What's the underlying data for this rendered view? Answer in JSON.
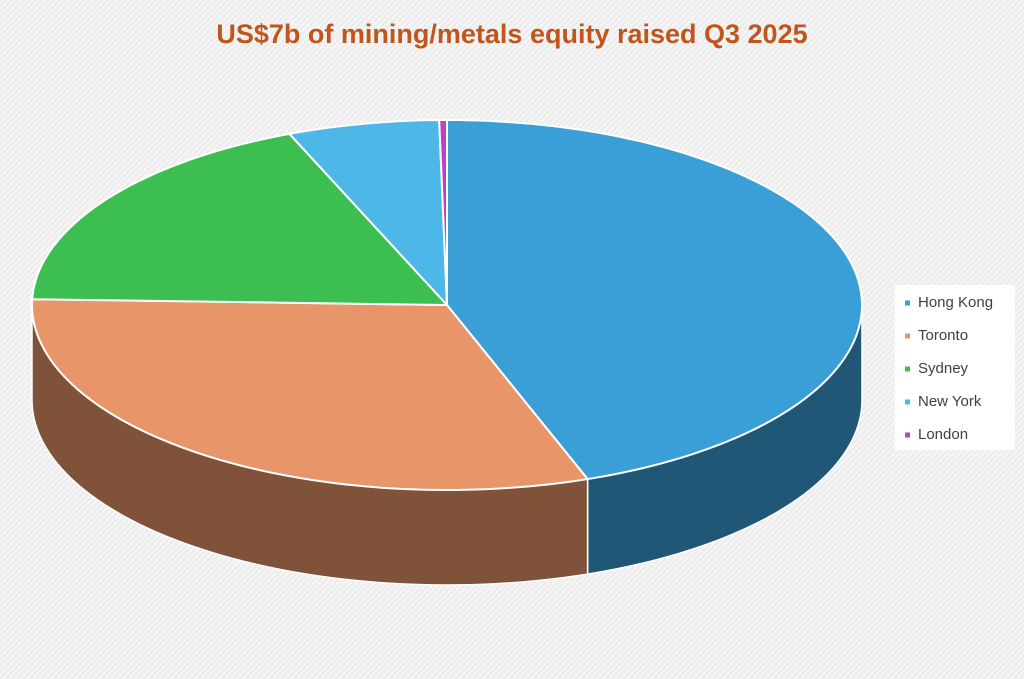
{
  "chart_data": {
    "type": "pie3d",
    "title": "US$7b of mining/metals equity raised Q3 2025",
    "categories": [
      "Hong Kong",
      "Toronto",
      "Sydney",
      "New York",
      "London"
    ],
    "values": [
      44.5,
      31,
      18.3,
      5.9,
      0.3
    ],
    "colors": [
      "#3a9fd6",
      "#e8956a",
      "#3cbf50",
      "#4db8e8",
      "#c040c0"
    ],
    "legend": "right"
  }
}
